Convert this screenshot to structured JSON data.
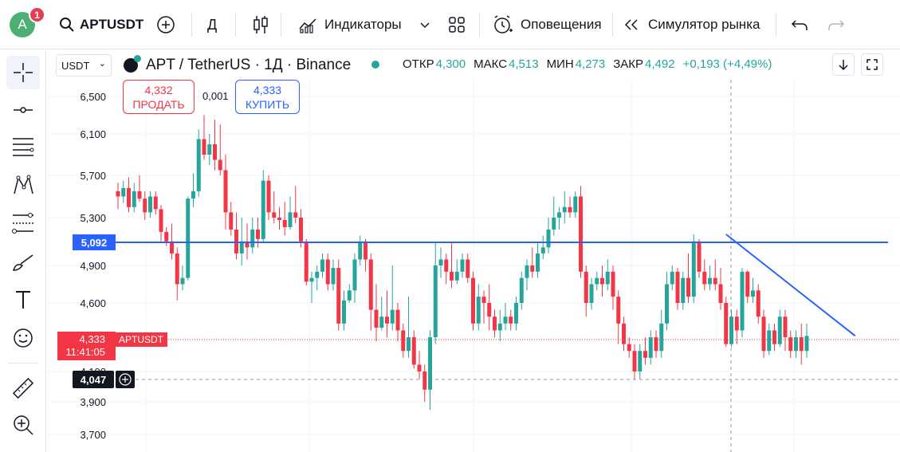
{
  "topbar": {
    "avatar_letter": "A",
    "notification_count": "1",
    "symbol": "APTUSDT",
    "interval": "Д",
    "indicators_label": "Индикаторы",
    "alerts_label": "Оповещения",
    "replay_label": "Симулятор рынка"
  },
  "header": {
    "currency": "USDT",
    "title": "APT / TetherUS · 1Д · Binance",
    "ohlc": {
      "open_label": "ОТКР",
      "open": "4,300",
      "high_label": "МАКС",
      "high": "4,513",
      "low_label": "МИН",
      "low": "4,273",
      "close_label": "ЗАКР",
      "close": "4,492",
      "change": "+0,193 (+4,49%)"
    }
  },
  "trade": {
    "sell_price": "4,332",
    "sell_label": "ПРОДАТЬ",
    "spread": "0,001",
    "buy_price": "4,333",
    "buy_label": "КУПИТЬ"
  },
  "colors": {
    "up": "#26a69a",
    "down": "#f23645",
    "line": "#2962ff",
    "grid": "#f0f3fa"
  },
  "chart_data": {
    "type": "candlestick",
    "y_ticks": [
      "6,500",
      "6,100",
      "5,700",
      "5,300",
      "4,900",
      "4,600",
      "4,100",
      "3,900",
      "3,700"
    ],
    "y_tick_values": [
      6.5,
      6.1,
      5.7,
      5.3,
      4.9,
      4.6,
      4.1,
      3.9,
      3.7
    ],
    "horizontal_line": {
      "value": 5.092,
      "label": "5,092"
    },
    "current_price": {
      "value": 4.333,
      "label": "4,333",
      "countdown": "11:41:05",
      "symbol_tag": "APTUSDT"
    },
    "crosshair_price": {
      "value": 4.047,
      "label": "4,047"
    },
    "trendline": {
      "from": [
        113,
        5.16
      ],
      "to": [
        137,
        4.36
      ]
    },
    "candles": [
      [
        5.55,
        5.5,
        5.63,
        5.38
      ],
      [
        5.5,
        5.58,
        5.65,
        5.44
      ],
      [
        5.58,
        5.4,
        5.68,
        5.35
      ],
      [
        5.4,
        5.55,
        5.63,
        5.35
      ],
      [
        5.55,
        5.48,
        5.7,
        5.45
      ],
      [
        5.48,
        5.35,
        5.55,
        5.28
      ],
      [
        5.35,
        5.5,
        5.55,
        5.3
      ],
      [
        5.5,
        5.38,
        5.55,
        5.33
      ],
      [
        5.38,
        5.18,
        5.42,
        5.1
      ],
      [
        5.18,
        5.1,
        5.22,
        5.06
      ],
      [
        5.1,
        5.0,
        5.25,
        4.95
      ],
      [
        5.0,
        4.75,
        5.05,
        4.62
      ],
      [
        4.75,
        4.8,
        4.9,
        4.7
      ],
      [
        4.8,
        5.48,
        5.5,
        4.78
      ],
      [
        5.48,
        5.55,
        5.72,
        5.4
      ],
      [
        5.55,
        6.05,
        6.15,
        5.5
      ],
      [
        6.05,
        5.9,
        6.3,
        5.85
      ],
      [
        5.9,
        6.0,
        6.1,
        5.8
      ],
      [
        6.0,
        5.85,
        6.25,
        5.75
      ],
      [
        5.85,
        5.75,
        6.2,
        5.7
      ],
      [
        5.75,
        5.35,
        5.9,
        5.2
      ],
      [
        5.35,
        5.2,
        5.45,
        5.15
      ],
      [
        5.2,
        5.0,
        5.35,
        4.95
      ],
      [
        5.0,
        5.1,
        5.3,
        4.9
      ],
      [
        5.1,
        5.05,
        5.25,
        4.95
      ],
      [
        5.05,
        5.2,
        5.3,
        5.0
      ],
      [
        5.2,
        5.12,
        5.3,
        5.05
      ],
      [
        5.12,
        5.65,
        5.75,
        5.1
      ],
      [
        5.65,
        5.35,
        5.7,
        5.28
      ],
      [
        5.35,
        5.3,
        5.55,
        5.25
      ],
      [
        5.3,
        5.28,
        5.4,
        5.2
      ],
      [
        5.28,
        5.22,
        5.45,
        5.15
      ],
      [
        5.22,
        5.35,
        5.5,
        5.2
      ],
      [
        5.35,
        5.3,
        5.6,
        5.25
      ],
      [
        5.3,
        5.1,
        5.38,
        5.05
      ],
      [
        5.1,
        4.77,
        5.12,
        4.74
      ],
      [
        4.77,
        4.8,
        4.85,
        4.6
      ],
      [
        4.8,
        4.85,
        4.9,
        4.7
      ],
      [
        4.85,
        4.95,
        5.0,
        4.8
      ],
      [
        4.95,
        4.75,
        5.0,
        4.7
      ],
      [
        4.75,
        4.88,
        4.95,
        4.7
      ],
      [
        4.88,
        4.45,
        4.95,
        4.4
      ],
      [
        4.45,
        4.62,
        4.7,
        4.4
      ],
      [
        4.62,
        4.7,
        4.75,
        4.6
      ],
      [
        4.7,
        4.95,
        5.0,
        4.6
      ],
      [
        4.95,
        5.1,
        5.15,
        4.9
      ],
      [
        5.1,
        4.95,
        5.12,
        4.85
      ],
      [
        4.95,
        4.55,
        5.0,
        4.4
      ],
      [
        4.55,
        4.42,
        4.75,
        4.32
      ],
      [
        4.42,
        4.5,
        4.65,
        4.4
      ],
      [
        4.5,
        4.45,
        4.7,
        4.35
      ],
      [
        4.45,
        4.55,
        4.9,
        4.4
      ],
      [
        4.55,
        4.4,
        4.6,
        4.32
      ],
      [
        4.4,
        4.25,
        4.45,
        4.2
      ],
      [
        4.25,
        4.35,
        4.65,
        4.2
      ],
      [
        4.35,
        4.15,
        4.4,
        4.12
      ],
      [
        4.15,
        4.1,
        4.25,
        4.05
      ],
      [
        4.1,
        3.98,
        4.15,
        3.9
      ],
      [
        3.98,
        4.35,
        4.4,
        3.85
      ],
      [
        4.35,
        4.9,
        5.1,
        4.3
      ],
      [
        4.9,
        4.95,
        5.05,
        4.8
      ],
      [
        4.95,
        4.85,
        5.0,
        4.75
      ],
      [
        4.85,
        4.78,
        5.1,
        4.72
      ],
      [
        4.78,
        4.85,
        4.95,
        4.75
      ],
      [
        4.85,
        4.95,
        5.0,
        4.8
      ],
      [
        4.95,
        4.8,
        5.0,
        4.76
      ],
      [
        4.8,
        4.45,
        4.85,
        4.4
      ],
      [
        4.45,
        4.65,
        4.75,
        4.4
      ],
      [
        4.65,
        4.6,
        4.7,
        4.45
      ],
      [
        4.6,
        4.5,
        4.75,
        4.4
      ],
      [
        4.5,
        4.4,
        4.55,
        4.35
      ],
      [
        4.4,
        4.45,
        4.55,
        4.32
      ],
      [
        4.45,
        4.5,
        4.6,
        4.4
      ],
      [
        4.5,
        4.45,
        4.55,
        4.4
      ],
      [
        4.45,
        4.6,
        4.65,
        4.4
      ],
      [
        4.6,
        4.8,
        4.85,
        4.55
      ],
      [
        4.8,
        4.9,
        4.95,
        4.7
      ],
      [
        4.9,
        4.85,
        5.05,
        4.8
      ],
      [
        4.85,
        5.0,
        5.1,
        4.8
      ],
      [
        5.0,
        5.05,
        5.15,
        4.95
      ],
      [
        5.05,
        5.2,
        5.3,
        5.0
      ],
      [
        5.2,
        5.3,
        5.5,
        5.15
      ],
      [
        5.3,
        5.35,
        5.4,
        5.2
      ],
      [
        5.35,
        5.4,
        5.55,
        5.25
      ],
      [
        5.4,
        5.35,
        5.5,
        5.3
      ],
      [
        5.35,
        5.5,
        5.55,
        5.3
      ],
      [
        5.5,
        4.85,
        5.6,
        4.8
      ],
      [
        4.85,
        4.6,
        4.9,
        4.5
      ],
      [
        4.6,
        4.75,
        4.8,
        4.55
      ],
      [
        4.75,
        4.8,
        4.85,
        4.7
      ],
      [
        4.8,
        4.75,
        4.9,
        4.65
      ],
      [
        4.75,
        4.85,
        4.95,
        4.7
      ],
      [
        4.85,
        4.65,
        4.9,
        4.55
      ],
      [
        4.65,
        4.45,
        4.7,
        4.3
      ],
      [
        4.45,
        4.3,
        4.5,
        4.25
      ],
      [
        4.3,
        4.25,
        4.35,
        4.2
      ],
      [
        4.25,
        4.1,
        4.3,
        4.05
      ],
      [
        4.1,
        4.25,
        4.3,
        4.05
      ],
      [
        4.25,
        4.2,
        4.35,
        4.15
      ],
      [
        4.2,
        4.35,
        4.4,
        4.15
      ],
      [
        4.35,
        4.25,
        4.4,
        4.2
      ],
      [
        4.25,
        4.45,
        4.55,
        4.2
      ],
      [
        4.45,
        4.75,
        4.85,
        4.4
      ],
      [
        4.75,
        4.85,
        4.9,
        4.7
      ],
      [
        4.85,
        4.6,
        4.88,
        4.55
      ],
      [
        4.6,
        4.8,
        4.85,
        4.55
      ],
      [
        4.8,
        4.65,
        5.0,
        4.6
      ],
      [
        4.65,
        5.1,
        5.16,
        4.6
      ],
      [
        5.1,
        4.85,
        5.12,
        4.8
      ],
      [
        4.85,
        4.75,
        4.95,
        4.7
      ],
      [
        4.75,
        4.8,
        4.9,
        4.7
      ],
      [
        4.8,
        4.75,
        4.95,
        4.7
      ],
      [
        4.75,
        4.6,
        4.88,
        4.55
      ],
      [
        4.6,
        4.3,
        4.65,
        4.28
      ],
      [
        4.3,
        4.5,
        4.55,
        4.28
      ],
      [
        4.5,
        4.4,
        4.55,
        4.3
      ],
      [
        4.4,
        4.85,
        4.88,
        4.35
      ],
      [
        4.85,
        4.65,
        4.86,
        4.6
      ],
      [
        4.65,
        4.7,
        4.8,
        4.6
      ],
      [
        4.7,
        4.5,
        4.75,
        4.45
      ],
      [
        4.5,
        4.25,
        4.55,
        4.2
      ],
      [
        4.25,
        4.4,
        4.45,
        4.22
      ],
      [
        4.4,
        4.3,
        4.45,
        4.25
      ],
      [
        4.3,
        4.5,
        4.55,
        4.28
      ],
      [
        4.5,
        4.35,
        4.55,
        4.25
      ],
      [
        4.35,
        4.25,
        4.4,
        4.2
      ],
      [
        4.25,
        4.35,
        4.4,
        4.2
      ],
      [
        4.35,
        4.25,
        4.45,
        4.15
      ],
      [
        4.25,
        4.36,
        4.45,
        4.2
      ]
    ]
  }
}
